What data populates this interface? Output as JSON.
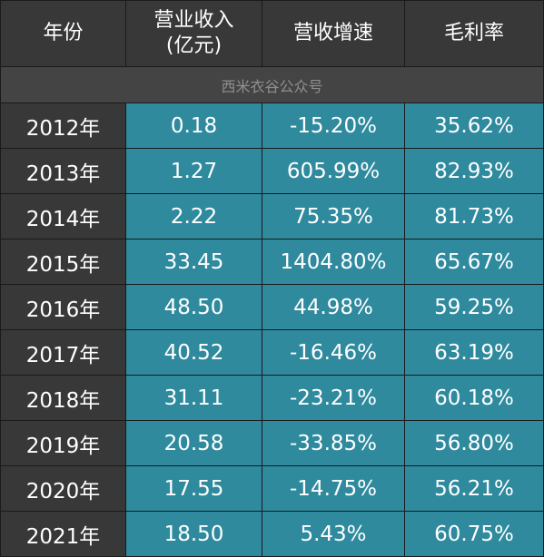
{
  "chart_data": {
    "type": "table",
    "columns": [
      "年份",
      "营业收入\n(亿元)",
      "营收增速",
      "毛利率"
    ],
    "source_note": "西米衣谷公众号",
    "rows": [
      [
        "2012年",
        "0.18",
        "-15.20%",
        "35.62%"
      ],
      [
        "2013年",
        "1.27",
        "605.99%",
        "82.93%"
      ],
      [
        "2014年",
        "2.22",
        "75.35%",
        "81.73%"
      ],
      [
        "2015年",
        "33.45",
        "1404.80%",
        "65.67%"
      ],
      [
        "2016年",
        "48.50",
        "44.98%",
        "59.25%"
      ],
      [
        "2017年",
        "40.52",
        "-16.46%",
        "63.19%"
      ],
      [
        "2018年",
        "31.11",
        "-23.21%",
        "60.18%"
      ],
      [
        "2019年",
        "20.58",
        "-33.85%",
        "56.80%"
      ],
      [
        "2020年",
        "17.55",
        "-14.75%",
        "56.21%"
      ],
      [
        "2021年",
        "18.50",
        "5.43%",
        "60.75%"
      ]
    ],
    "colors": {
      "header_bg": "#383838",
      "year_bg": "#383838",
      "value_bg": "#2f8a9e",
      "note_bg": "#444444",
      "note_text": "#8f8f8f",
      "border": "#1a1a1a",
      "text": "#ffffff"
    }
  }
}
